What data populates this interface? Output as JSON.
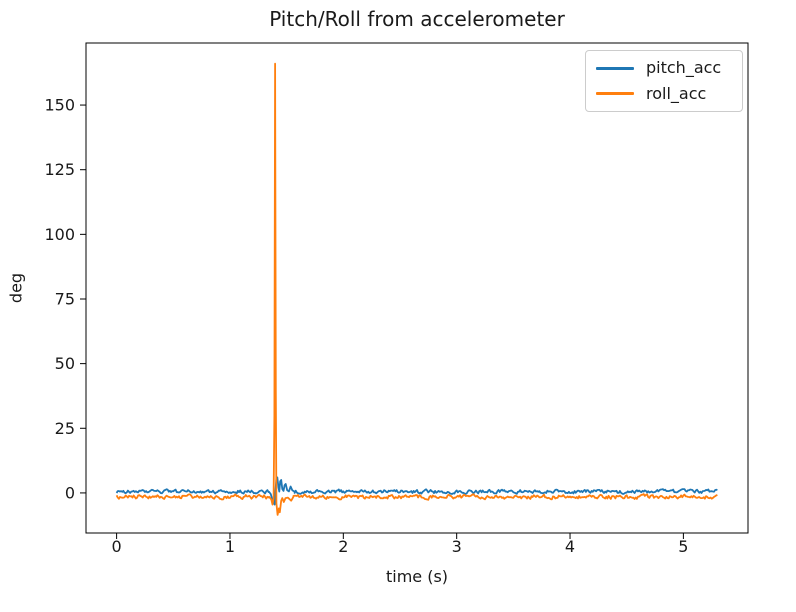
{
  "chart_data": {
    "type": "line",
    "title": "Pitch/Roll from accelerometer",
    "xlabel": "time (s)",
    "ylabel": "deg",
    "xlim": [
      -0.27,
      5.57
    ],
    "ylim": [
      -15.5,
      174
    ],
    "xticks": [
      0,
      1,
      2,
      3,
      4,
      5
    ],
    "yticks": [
      0,
      25,
      50,
      75,
      100,
      125,
      150
    ],
    "grid": false,
    "background_color": "#ffffff",
    "axis_color": "#000000",
    "text_color": "#1a1a1a",
    "legend": {
      "position": "upper right",
      "border_color": "#cccccc",
      "entries": [
        "pitch_acc",
        "roll_acc"
      ]
    },
    "duration_s": 5.3,
    "sample_interval_s": 0.01,
    "noise_seed": 987654321,
    "series": [
      {
        "name": "pitch_acc",
        "color": "#1f77b4",
        "baseline_deg": 0.5,
        "noise_amplitude_deg": 0.8,
        "spike_anchors": [
          [
            1.345,
            0.4
          ],
          [
            1.36,
            -0.5
          ],
          [
            1.37,
            -2.0
          ],
          [
            1.385,
            -3.5
          ],
          [
            1.395,
            -4.5
          ],
          [
            1.402,
            1.0
          ],
          [
            1.41,
            5.5
          ],
          [
            1.418,
            6.0
          ],
          [
            1.428,
            2.0
          ],
          [
            1.435,
            0.5
          ],
          [
            1.443,
            4.5
          ],
          [
            1.452,
            5.0
          ],
          [
            1.462,
            1.5
          ],
          [
            1.472,
            0.8
          ],
          [
            1.482,
            3.0
          ],
          [
            1.492,
            3.5
          ],
          [
            1.505,
            1.0
          ],
          [
            1.52,
            0.6
          ],
          [
            1.535,
            2.5
          ],
          [
            1.55,
            1.0
          ],
          [
            1.57,
            0.5
          ]
        ]
      },
      {
        "name": "roll_acc",
        "color": "#ff7f0e",
        "baseline_deg": -1.5,
        "noise_amplitude_deg": 0.9,
        "spike_anchors": [
          [
            1.345,
            -1.5
          ],
          [
            1.365,
            -2.5
          ],
          [
            1.375,
            -4.5
          ],
          [
            1.385,
            -2.0
          ],
          [
            1.392,
            30.0
          ],
          [
            1.398,
            166.0
          ],
          [
            1.404,
            40.0
          ],
          [
            1.41,
            -4.0
          ],
          [
            1.42,
            -8.5
          ],
          [
            1.432,
            -6.0
          ],
          [
            1.44,
            -7.5
          ],
          [
            1.452,
            -3.0
          ],
          [
            1.462,
            -2.0
          ],
          [
            1.475,
            -3.5
          ],
          [
            1.49,
            -2.0
          ],
          [
            1.51,
            -1.8
          ],
          [
            1.54,
            -3.0
          ],
          [
            1.56,
            -1.5
          ]
        ]
      }
    ],
    "spike_summary": {
      "time_s": 1.4,
      "roll_peak_deg": 166,
      "roll_min_deg": -8.5,
      "pitch_max_deg": 6,
      "pitch_min_deg": -4.5
    }
  }
}
